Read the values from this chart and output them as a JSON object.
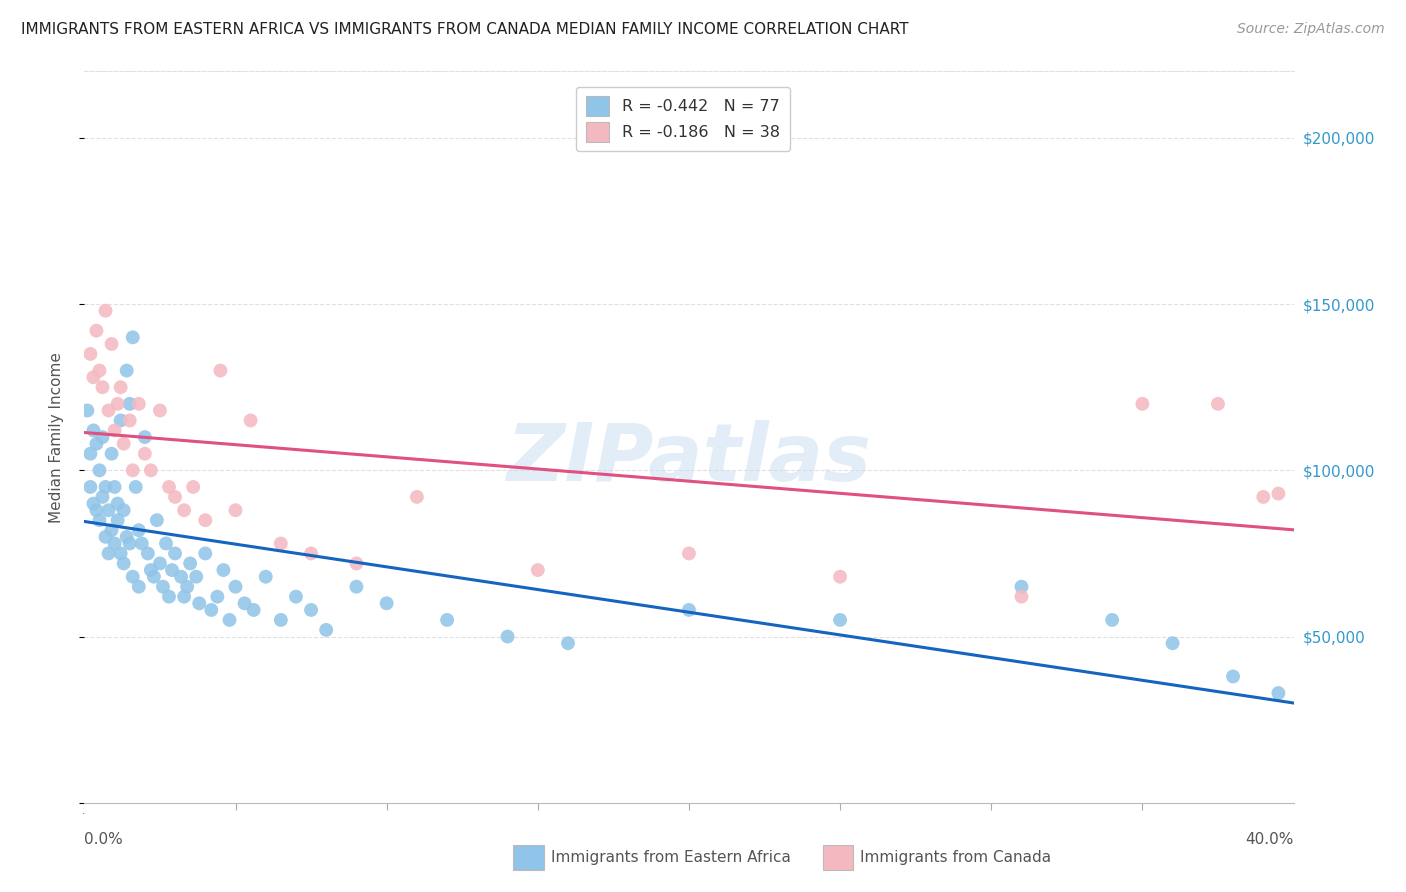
{
  "title": "IMMIGRANTS FROM EASTERN AFRICA VS IMMIGRANTS FROM CANADA MEDIAN FAMILY INCOME CORRELATION CHART",
  "source": "Source: ZipAtlas.com",
  "ylabel": "Median Family Income",
  "watermark": "ZIPatlas",
  "blue_R": "-0.442",
  "blue_N": "77",
  "pink_R": "-0.186",
  "pink_N": "38",
  "blue_label": "Immigrants from Eastern Africa",
  "pink_label": "Immigrants from Canada",
  "xlim": [
    0.0,
    0.4
  ],
  "ylim": [
    0,
    220000
  ],
  "yticks": [
    0,
    50000,
    100000,
    150000,
    200000
  ],
  "ytick_labels": [
    "",
    "$50,000",
    "$100,000",
    "$150,000",
    "$200,000"
  ],
  "blue_color": "#90c4e8",
  "pink_color": "#f4b8c1",
  "trendline_blue": "#1565c0",
  "trendline_pink": "#e05080",
  "background_color": "#ffffff",
  "grid_color": "#e0e0e0",
  "blue_x": [
    0.001,
    0.002,
    0.002,
    0.003,
    0.003,
    0.004,
    0.004,
    0.005,
    0.005,
    0.006,
    0.006,
    0.007,
    0.007,
    0.008,
    0.008,
    0.009,
    0.009,
    0.01,
    0.01,
    0.011,
    0.011,
    0.012,
    0.012,
    0.013,
    0.013,
    0.014,
    0.014,
    0.015,
    0.015,
    0.016,
    0.016,
    0.017,
    0.018,
    0.018,
    0.019,
    0.02,
    0.021,
    0.022,
    0.023,
    0.024,
    0.025,
    0.026,
    0.027,
    0.028,
    0.029,
    0.03,
    0.032,
    0.033,
    0.034,
    0.035,
    0.037,
    0.038,
    0.04,
    0.042,
    0.044,
    0.046,
    0.048,
    0.05,
    0.053,
    0.056,
    0.06,
    0.065,
    0.07,
    0.075,
    0.08,
    0.09,
    0.1,
    0.12,
    0.14,
    0.16,
    0.2,
    0.25,
    0.31,
    0.34,
    0.36,
    0.38,
    0.395
  ],
  "blue_y": [
    118000,
    105000,
    95000,
    112000,
    90000,
    108000,
    88000,
    100000,
    85000,
    110000,
    92000,
    95000,
    80000,
    88000,
    75000,
    105000,
    82000,
    95000,
    78000,
    90000,
    85000,
    115000,
    75000,
    88000,
    72000,
    130000,
    80000,
    120000,
    78000,
    140000,
    68000,
    95000,
    82000,
    65000,
    78000,
    110000,
    75000,
    70000,
    68000,
    85000,
    72000,
    65000,
    78000,
    62000,
    70000,
    75000,
    68000,
    62000,
    65000,
    72000,
    68000,
    60000,
    75000,
    58000,
    62000,
    70000,
    55000,
    65000,
    60000,
    58000,
    68000,
    55000,
    62000,
    58000,
    52000,
    65000,
    60000,
    55000,
    50000,
    48000,
    58000,
    55000,
    65000,
    55000,
    48000,
    38000,
    33000
  ],
  "pink_x": [
    0.002,
    0.003,
    0.004,
    0.005,
    0.006,
    0.007,
    0.008,
    0.009,
    0.01,
    0.011,
    0.012,
    0.013,
    0.015,
    0.016,
    0.018,
    0.02,
    0.022,
    0.025,
    0.028,
    0.03,
    0.033,
    0.036,
    0.04,
    0.045,
    0.05,
    0.055,
    0.065,
    0.075,
    0.09,
    0.11,
    0.15,
    0.2,
    0.25,
    0.31,
    0.35,
    0.375,
    0.39,
    0.395
  ],
  "pink_y": [
    135000,
    128000,
    142000,
    130000,
    125000,
    148000,
    118000,
    138000,
    112000,
    120000,
    125000,
    108000,
    115000,
    100000,
    120000,
    105000,
    100000,
    118000,
    95000,
    92000,
    88000,
    95000,
    85000,
    130000,
    88000,
    115000,
    78000,
    75000,
    72000,
    92000,
    70000,
    75000,
    68000,
    62000,
    120000,
    120000,
    92000,
    93000
  ]
}
